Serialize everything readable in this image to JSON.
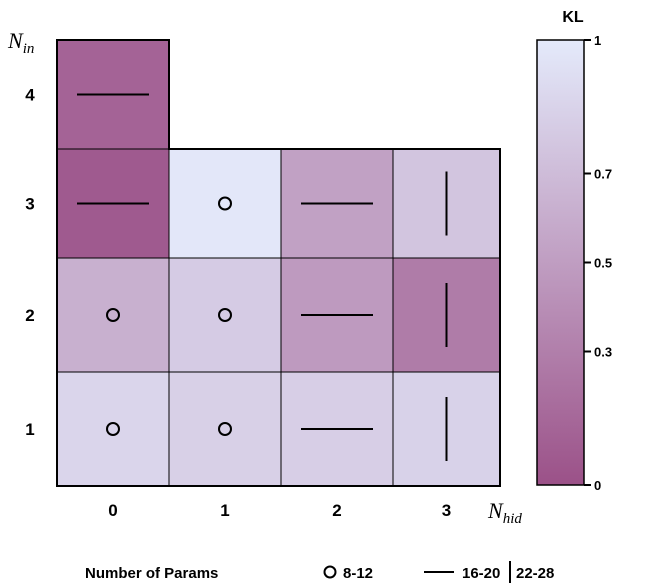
{
  "chart_data": {
    "type": "heatmap",
    "xlabel": {
      "main": "N",
      "sub": "hid"
    },
    "ylabel": {
      "main": "N",
      "sub": "in"
    },
    "x_categories": [
      "0",
      "1",
      "2",
      "3"
    ],
    "y_categories": [
      "1",
      "2",
      "3",
      "4"
    ],
    "cells": [
      {
        "x": "0",
        "y": "1",
        "kl": 0.86,
        "params": "8-12"
      },
      {
        "x": "1",
        "y": "1",
        "kl": 0.83,
        "params": "8-12"
      },
      {
        "x": "2",
        "y": "1",
        "kl": 0.82,
        "params": "16-20"
      },
      {
        "x": "3",
        "y": "1",
        "kl": 0.84,
        "params": "22-28"
      },
      {
        "x": "0",
        "y": "2",
        "kl": 0.62,
        "params": "8-12"
      },
      {
        "x": "1",
        "y": "2",
        "kl": 0.8,
        "params": "8-12"
      },
      {
        "x": "2",
        "y": "2",
        "kl": 0.48,
        "params": "16-20"
      },
      {
        "x": "3",
        "y": "2",
        "kl": 0.28,
        "params": "22-28"
      },
      {
        "x": "0",
        "y": "3",
        "kl": 0.06,
        "params": "16-20"
      },
      {
        "x": "1",
        "y": "3",
        "kl": 0.98,
        "params": "8-12"
      },
      {
        "x": "2",
        "y": "3",
        "kl": 0.52,
        "params": "16-20"
      },
      {
        "x": "3",
        "y": "3",
        "kl": 0.76,
        "params": "22-28"
      },
      {
        "x": "0",
        "y": "4",
        "kl": 0.12,
        "params": "16-20"
      }
    ],
    "colorbar": {
      "title": "KL",
      "range": [
        0,
        1
      ],
      "tick_values": [
        0,
        0.3,
        0.5,
        0.7,
        1
      ],
      "tick_labels": [
        "0",
        "0.3",
        "0.5",
        "0.7",
        "1"
      ],
      "color_low": "#9B5188",
      "color_high": "#E4EAFB"
    },
    "legend": {
      "title": "Number of Params",
      "entries": [
        {
          "marker": "circle",
          "label": "8-12"
        },
        {
          "marker": "horizontal-line",
          "label": "16-20"
        },
        {
          "marker": "vertical-line",
          "label": "22-28"
        }
      ]
    },
    "grid_line_color": "#000000"
  }
}
